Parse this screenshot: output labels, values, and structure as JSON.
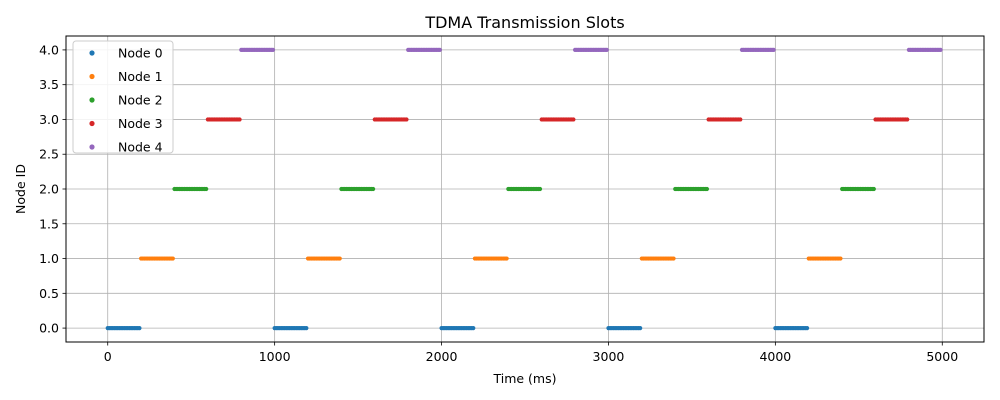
{
  "chart_data": {
    "type": "scatter",
    "title": "TDMA Transmission Slots",
    "xlabel": "Time (ms)",
    "ylabel": "Node ID",
    "xlim": [
      -250,
      5250
    ],
    "ylim": [
      -0.2,
      4.2
    ],
    "x_ticks": [
      0,
      1000,
      2000,
      3000,
      4000,
      5000
    ],
    "x_tick_labels": [
      "0",
      "1000",
      "2000",
      "3000",
      "4000",
      "5000"
    ],
    "y_ticks": [
      0,
      0.5,
      1,
      1.5,
      2,
      2.5,
      3,
      3.5,
      4
    ],
    "y_tick_labels": [
      "0.0",
      "0.5",
      "1.0",
      "1.5",
      "2.0",
      "2.5",
      "3.0",
      "3.5",
      "4.0"
    ],
    "grid": true,
    "legend_position": "upper-left",
    "slot_length_ms": 200,
    "frame_length_ms": 1000,
    "frames": 5,
    "point_spacing_ms": 10,
    "series": [
      {
        "name": "Node 0",
        "node": 0,
        "color": "#1f77b4",
        "slots": [
          [
            0,
            200
          ],
          [
            1000,
            1200
          ],
          [
            2000,
            2200
          ],
          [
            3000,
            3200
          ],
          [
            4000,
            4200
          ]
        ]
      },
      {
        "name": "Node 1",
        "node": 1,
        "color": "#ff7f0e",
        "slots": [
          [
            200,
            400
          ],
          [
            1200,
            1400
          ],
          [
            2200,
            2400
          ],
          [
            3200,
            3400
          ],
          [
            4200,
            4400
          ]
        ]
      },
      {
        "name": "Node 2",
        "node": 2,
        "color": "#2ca02c",
        "slots": [
          [
            400,
            600
          ],
          [
            1400,
            1600
          ],
          [
            2400,
            2600
          ],
          [
            3400,
            3600
          ],
          [
            4400,
            4600
          ]
        ]
      },
      {
        "name": "Node 3",
        "node": 3,
        "color": "#d62728",
        "slots": [
          [
            600,
            800
          ],
          [
            1600,
            1800
          ],
          [
            2600,
            2800
          ],
          [
            3600,
            3800
          ],
          [
            4600,
            4800
          ]
        ]
      },
      {
        "name": "Node 4",
        "node": 4,
        "color": "#9467bd",
        "slots": [
          [
            800,
            1000
          ],
          [
            1800,
            2000
          ],
          [
            2800,
            3000
          ],
          [
            3800,
            4000
          ],
          [
            4800,
            5000
          ]
        ]
      }
    ]
  }
}
